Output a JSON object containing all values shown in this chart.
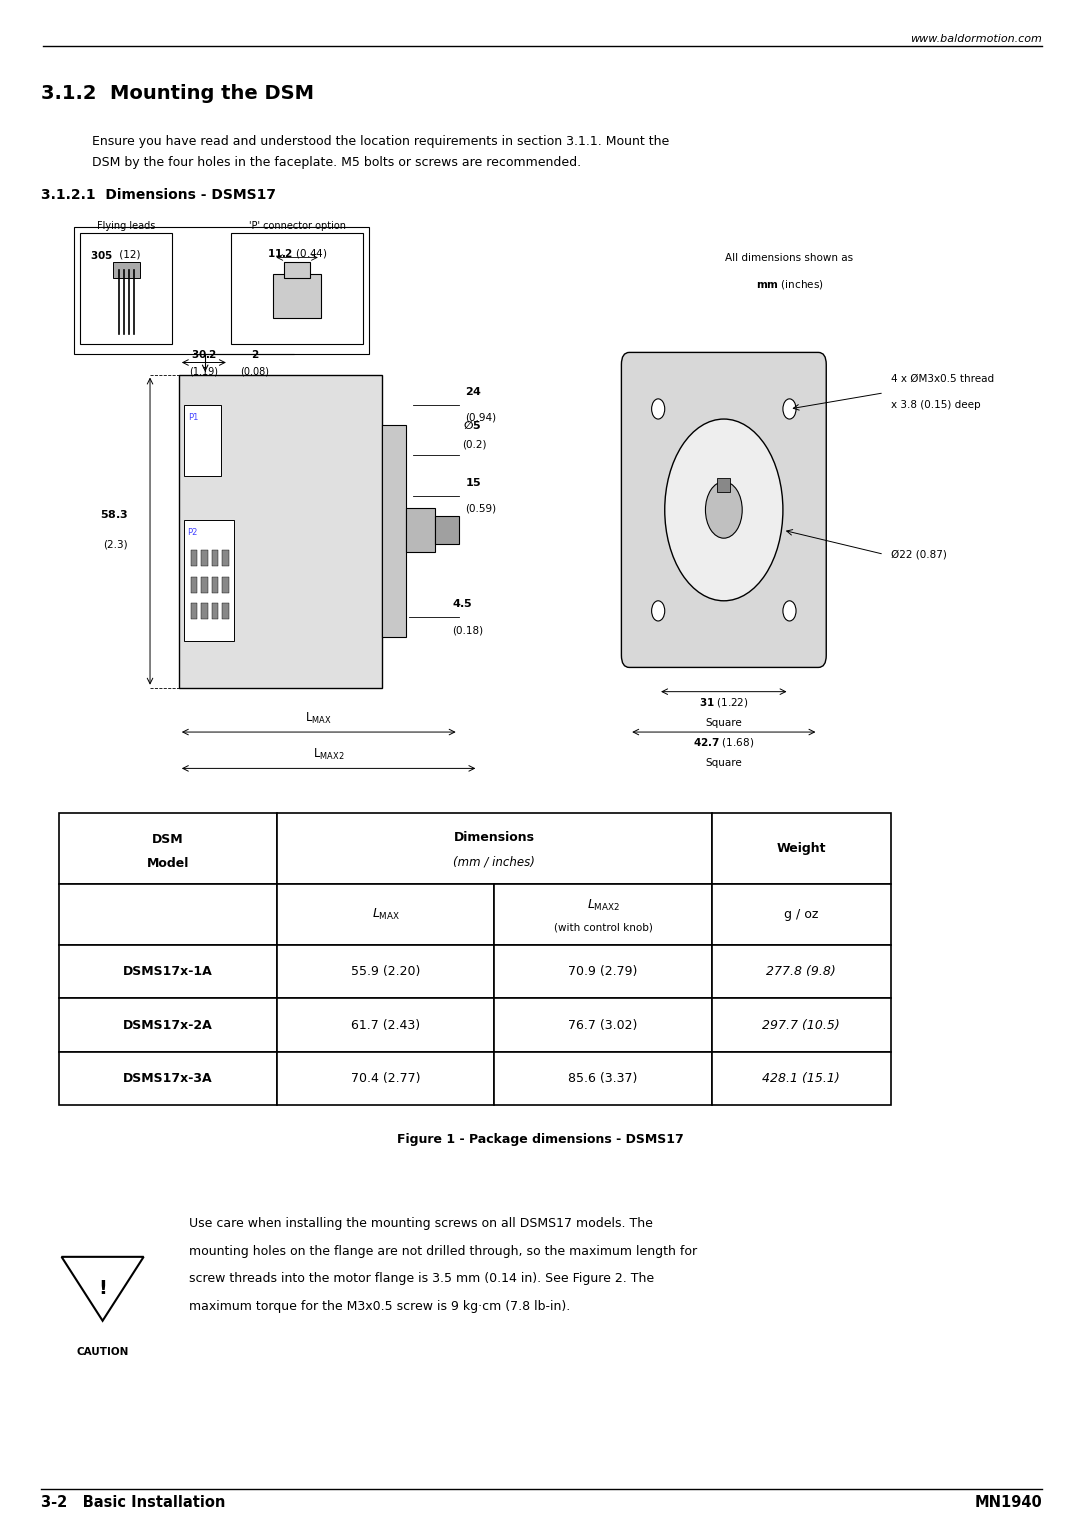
{
  "page_width": 10.8,
  "page_height": 15.29,
  "bg_color": "#ffffff",
  "header_url": "www.baldormotion.com",
  "section_title": "3.1.2  Mounting the DSM",
  "body_text_1": "Ensure you have read and understood the location requirements in section 3.1.1. Mount the",
  "body_text_2": "DSM by the four holes in the faceplate. M5 bolts or screws are recommended.",
  "subsection_title": "3.1.2.1  Dimensions - DSMS17",
  "figure_caption": "Figure 1 - Package dimensions - DSMS17",
  "footer_left": "3-2   Basic Installation",
  "footer_right": "MN1940",
  "table_rows": [
    [
      "DSMS17x-1A",
      "55.9 (2.20)",
      "70.9 (2.79)",
      "277.8 (9.8)"
    ],
    [
      "DSMS17x-2A",
      "61.7 (2.43)",
      "76.7 (3.02)",
      "297.7 (10.5)"
    ],
    [
      "DSMS17x-3A",
      "70.4 (2.77)",
      "85.6 (3.37)",
      "428.1 (15.1)"
    ]
  ],
  "caution_text_1": "Use care when installing the mounting screws on all DSMS17 models. The",
  "caution_text_2": "mounting holes on the flange are not drilled through, so the maximum length for",
  "caution_text_3": "screw threads into the motor flange is 3.5 mm (0.14 in). See Figure 2. The",
  "caution_text_4": "maximum torque for the M3x0.5 screw is 9 kg·cm (7.8 lb-in)."
}
